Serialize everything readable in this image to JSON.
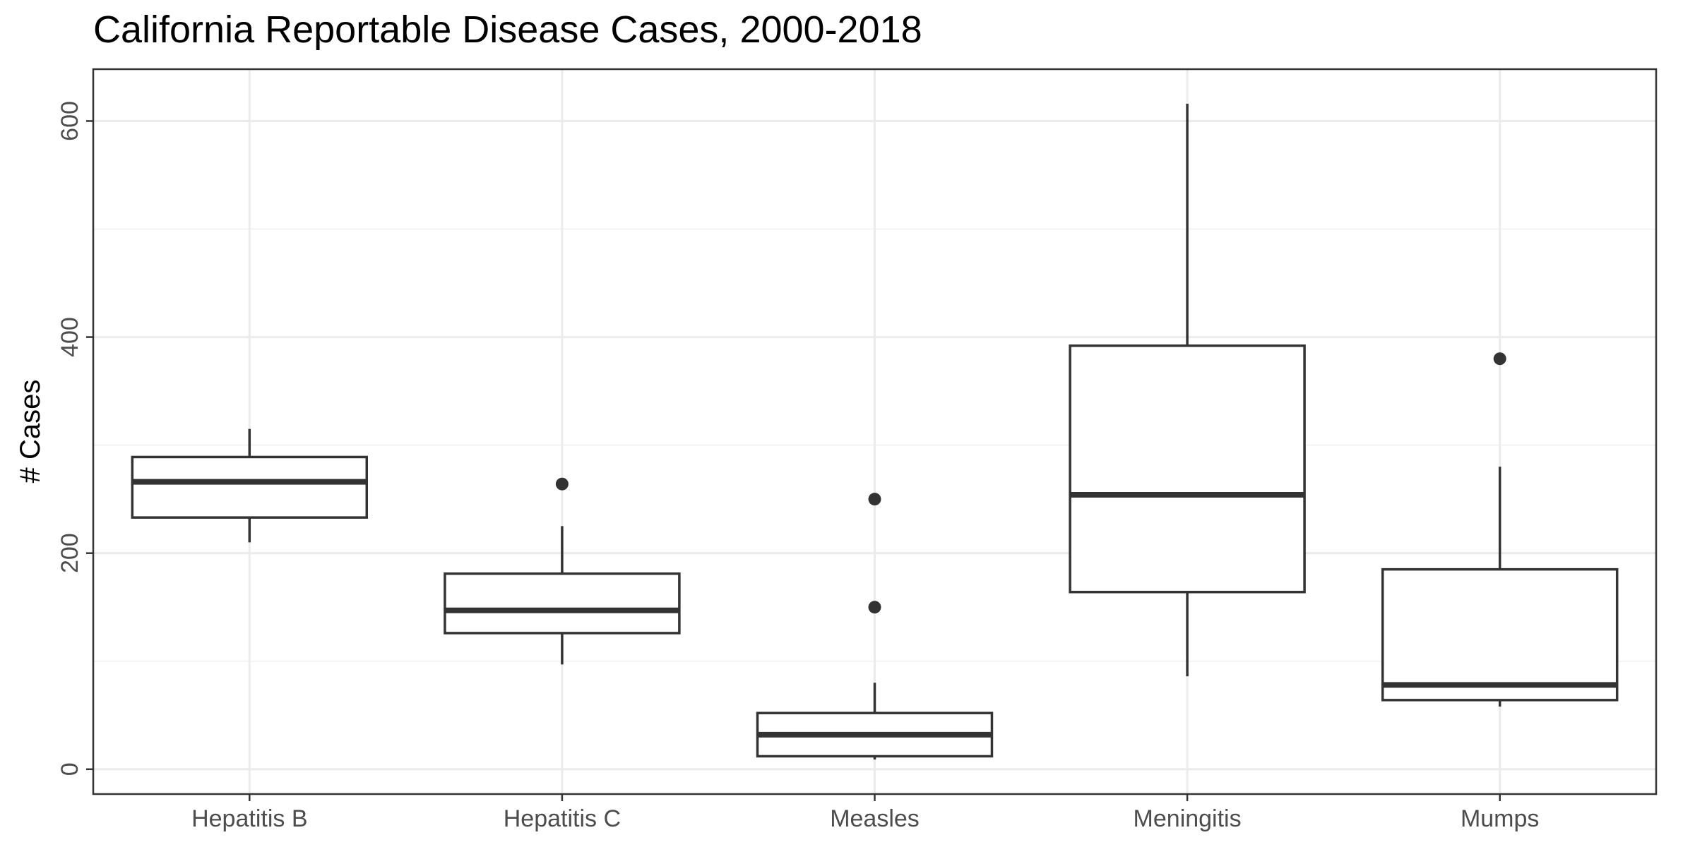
{
  "chart_data": {
    "type": "boxplot",
    "title": "California Reportable Disease Cases, 2000-2018",
    "xlabel": "",
    "ylabel": "# Cases",
    "ylim": [
      -23,
      648
    ],
    "yticks": [
      0,
      200,
      400,
      600
    ],
    "grid": true,
    "legend": "none",
    "categories": [
      "Hepatitis B",
      "Hepatitis C",
      "Measles",
      "Meningitis",
      "Mumps"
    ],
    "boxes": [
      {
        "category": "Hepatitis B",
        "whisker_low": 210,
        "q1": 233,
        "median": 266,
        "q3": 289,
        "whisker_high": 315,
        "outliers": []
      },
      {
        "category": "Hepatitis C",
        "whisker_low": 97,
        "q1": 126,
        "median": 147,
        "q3": 181,
        "whisker_high": 225,
        "outliers": [
          264
        ]
      },
      {
        "category": "Measles",
        "whisker_low": 9,
        "q1": 12,
        "median": 32,
        "q3": 52,
        "whisker_high": 80,
        "outliers": [
          150,
          250
        ]
      },
      {
        "category": "Meningitis",
        "whisker_low": 86,
        "q1": 164,
        "median": 254,
        "q3": 392,
        "whisker_high": 616,
        "outliers": []
      },
      {
        "category": "Mumps",
        "whisker_low": 58,
        "q1": 64,
        "median": 78,
        "q3": 185,
        "whisker_high": 280,
        "outliers": [
          380
        ]
      }
    ]
  },
  "colors": {
    "box_stroke": "#333333",
    "box_fill": "#ffffff",
    "grid": "#ebebeb",
    "tick_text": "#4d4d4d"
  }
}
